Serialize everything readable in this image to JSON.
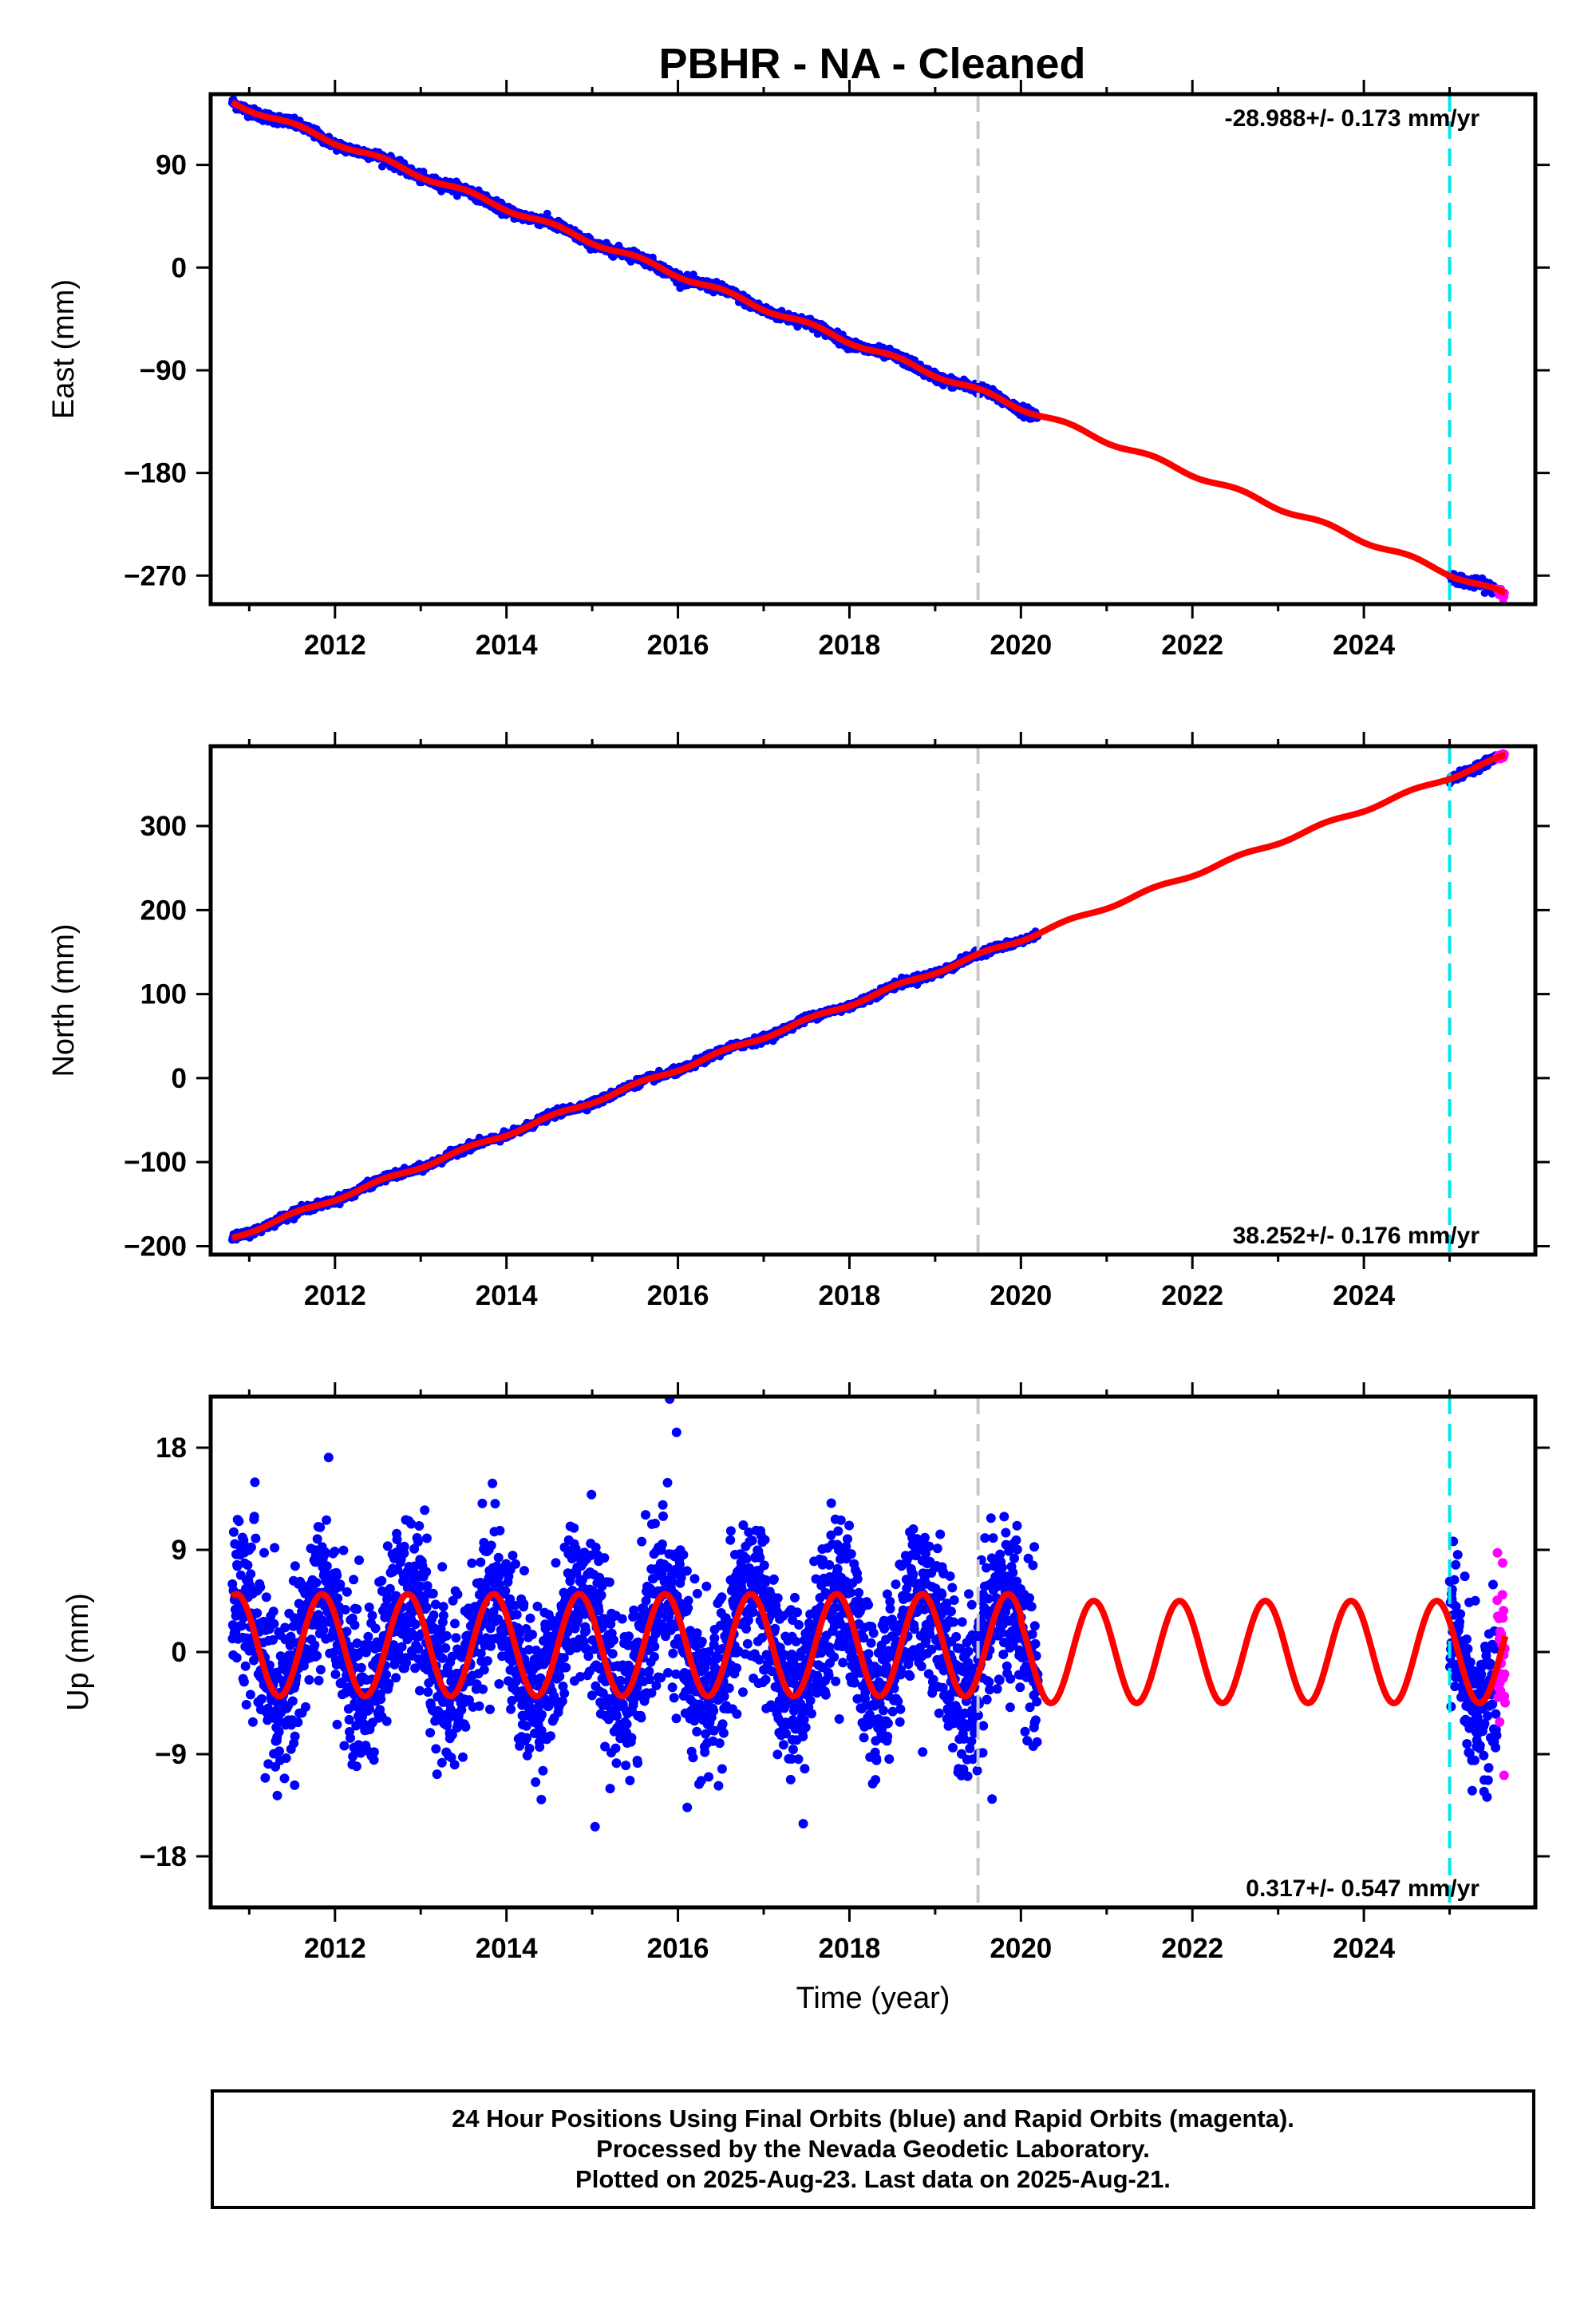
{
  "title": "PBHR  - NA - Cleaned",
  "colors": {
    "final_orbits": "#0000ff",
    "rapid_orbits": "#ff00ff",
    "model": "#ff0000",
    "event_line": "#c8c8c8",
    "recent_line": "#00e5ee"
  },
  "chart_data": [
    {
      "type": "scatter",
      "panel": "east",
      "ylabel": "East (mm)",
      "xlabel": "",
      "xlim": [
        2010.55,
        2026.0
      ],
      "ylim": [
        -295,
        152
      ],
      "yticks": [
        90,
        0,
        -90,
        -180,
        -270
      ],
      "xticks": [
        2012,
        2014,
        2016,
        2018,
        2020,
        2022,
        2024
      ],
      "rate_text": "-28.988+/- 0.173 mm/yr",
      "rate_position": "top-right",
      "trend": {
        "start": [
          2010.8,
          145
        ],
        "end": [
          2025.65,
          -287
        ]
      },
      "data_span_final": [
        [
          2010.8,
          2020.2
        ],
        [
          2025.0,
          2025.55
        ]
      ],
      "data_span_rapid": [
        [
          2025.55,
          2025.65
        ]
      ],
      "vertical_lines": {
        "event": 2019.5,
        "recent": 2025.0
      }
    },
    {
      "type": "scatter",
      "panel": "north",
      "ylabel": "North (mm)",
      "xlabel": "",
      "xlim": [
        2010.55,
        2026.0
      ],
      "ylim": [
        -210,
        395
      ],
      "yticks": [
        300,
        200,
        100,
        0,
        -100,
        -200
      ],
      "xticks": [
        2012,
        2014,
        2016,
        2018,
        2020,
        2022,
        2024
      ],
      "rate_text": "38.252+/- 0.176 mm/yr",
      "rate_position": "bottom-right",
      "trend": {
        "start": [
          2010.8,
          -190
        ],
        "end": [
          2025.65,
          383
        ]
      },
      "data_span_final": [
        [
          2010.8,
          2020.2
        ],
        [
          2025.0,
          2025.55
        ]
      ],
      "data_span_rapid": [
        [
          2025.55,
          2025.65
        ]
      ],
      "vertical_lines": {
        "event": 2019.5,
        "recent": 2025.0
      }
    },
    {
      "type": "scatter",
      "panel": "up",
      "ylabel": "Up (mm)",
      "xlabel": "Time (year)",
      "xlim": [
        2010.55,
        2026.0
      ],
      "ylim": [
        -22.5,
        22.5
      ],
      "yticks": [
        18,
        9,
        0,
        -9,
        -18
      ],
      "xticks": [
        2012,
        2014,
        2016,
        2018,
        2020,
        2022,
        2024
      ],
      "rate_text": "0.317+/- 0.547 mm/yr",
      "rate_position": "bottom-right",
      "seasonal_amplitude_mm": 4.5,
      "data_span_final": [
        [
          2010.8,
          2020.2
        ],
        [
          2025.0,
          2025.55
        ]
      ],
      "data_span_rapid": [
        [
          2025.55,
          2025.65
        ]
      ],
      "vertical_lines": {
        "event": 2019.5,
        "recent": 2025.0
      }
    }
  ],
  "footer": {
    "line1": "24 Hour Positions Using Final Orbits (blue) and Rapid Orbits (magenta).",
    "line2": "Processed by the Nevada Geodetic Laboratory.",
    "line3": "Plotted on 2025-Aug-23. Last data on 2025-Aug-21."
  }
}
